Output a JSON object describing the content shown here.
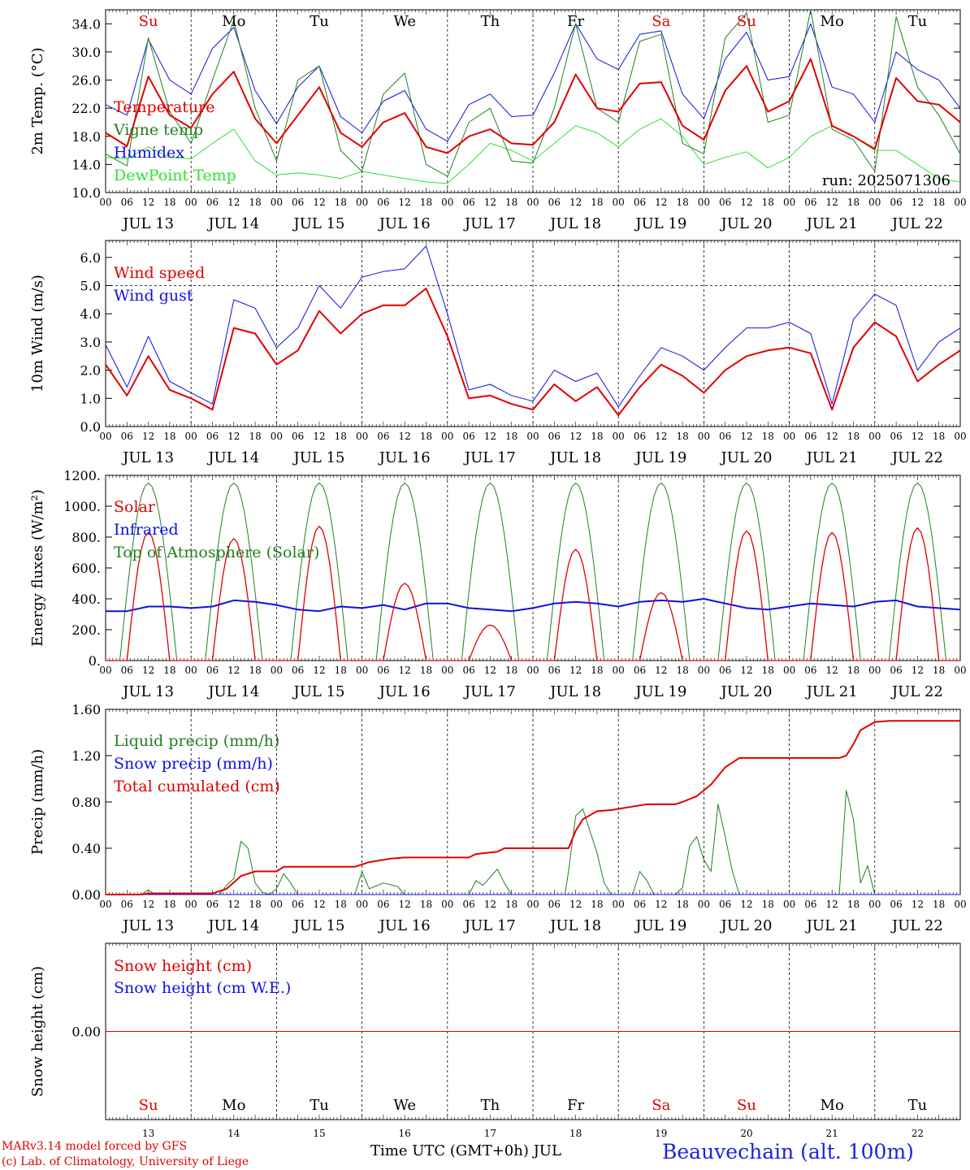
{
  "days": [
    "13",
    "14",
    "15",
    "16",
    "17",
    "18",
    "19",
    "20",
    "21",
    "22"
  ],
  "day_names": [
    "Su",
    "Mo",
    "Tu",
    "We",
    "Th",
    "Fr",
    "Sa",
    "Su",
    "Mo",
    "Tu"
  ],
  "weekend_flags": [
    true,
    false,
    false,
    false,
    false,
    false,
    true,
    true,
    false,
    false
  ],
  "date_labels": [
    "JUL 13",
    "JUL 14",
    "JUL 15",
    "JUL 16",
    "JUL 17",
    "JUL 18",
    "JUL 19",
    "JUL 20",
    "JUL 21",
    "JUL 22"
  ],
  "hour_labels": [
    "00",
    "06",
    "12",
    "18"
  ],
  "final_hour_label": "00",
  "colors": {
    "red": "#e00000",
    "dark_green": "#208020",
    "blue": "#1010e0",
    "light_green": "#30e030",
    "black": "#000000"
  },
  "footer": {
    "model": "MARv3.14 model forced by GFS",
    "credit": "(c) Lab. of Climatology, University of Liege",
    "axis_title": "Time UTC (GMT+0h) JUL",
    "station": "Beauvechain (alt. 100m)"
  },
  "chart_data": [
    {
      "type": "line",
      "ylabel": "2m Temp. (°C)",
      "ylim": [
        10,
        36
      ],
      "yticks": [
        "10.0",
        "14.0",
        "18.0",
        "22.0",
        "26.0",
        "30.0",
        "34.0"
      ],
      "ytick_values": [
        10,
        14,
        18,
        22,
        26,
        30,
        34
      ],
      "annotation": "run: 2025071306",
      "legend": [
        "Temperature",
        "Vigne temp",
        "Humidex",
        "DewPoint Temp"
      ],
      "x_hours": [
        0,
        6,
        12,
        18,
        24,
        30,
        36,
        42,
        48,
        54,
        60,
        66,
        72,
        78,
        84,
        90,
        96,
        102,
        108,
        114,
        120,
        126,
        132,
        138,
        144,
        150,
        156,
        162,
        168,
        174,
        180,
        186,
        192,
        198,
        204,
        210,
        216,
        222,
        228,
        234,
        240
      ],
      "series": [
        {
          "name": "Temperature",
          "color": "red",
          "width": 2,
          "values": [
            18.5,
            16.6,
            26.5,
            21.0,
            19.2,
            24.0,
            27.2,
            20.5,
            17.0,
            21.0,
            25.0,
            18.5,
            16.5,
            20.0,
            21.3,
            16.5,
            15.6,
            18.0,
            19.0,
            17.0,
            16.8,
            20.0,
            26.8,
            22.0,
            21.5,
            25.5,
            25.7,
            19.5,
            17.5,
            24.5,
            28.0,
            21.5,
            23.0,
            29.0,
            19.5,
            18.0,
            16.2,
            26.3,
            23.0,
            22.5,
            20.0
          ]
        },
        {
          "name": "Vigne temp",
          "color": "dark_green",
          "width": 1,
          "values": [
            15.5,
            13.8,
            32.0,
            21.5,
            17.0,
            26.0,
            34.5,
            22.0,
            14.5,
            26.0,
            28.0,
            16.0,
            13.0,
            24.0,
            27.0,
            14.0,
            12.3,
            20.0,
            22.0,
            14.5,
            14.2,
            22.0,
            34.0,
            22.0,
            20.0,
            31.5,
            32.5,
            17.0,
            15.5,
            32.0,
            35.5,
            20.0,
            21.0,
            36.0,
            19.0,
            17.5,
            13.0,
            35.0,
            25.0,
            21.0,
            15.5
          ]
        },
        {
          "name": "Humidex",
          "color": "blue",
          "width": 1,
          "values": [
            22.5,
            21.0,
            31.8,
            26.0,
            24.0,
            30.5,
            33.5,
            24.5,
            19.8,
            25.0,
            28.0,
            20.8,
            18.5,
            23.0,
            24.5,
            19.0,
            17.3,
            22.5,
            24.0,
            20.8,
            21.0,
            27.0,
            34.0,
            29.0,
            27.5,
            32.5,
            33.0,
            24.0,
            20.5,
            29.0,
            32.8,
            26.0,
            26.5,
            34.0,
            25.0,
            24.0,
            20.0,
            30.0,
            27.5,
            26.0,
            22.0
          ]
        },
        {
          "name": "DewPoint Temp",
          "color": "light_green",
          "width": 1,
          "values": [
            15.0,
            14.8,
            16.5,
            15.0,
            14.8,
            17.0,
            19.0,
            14.5,
            12.5,
            12.8,
            12.5,
            12.0,
            13.0,
            12.5,
            12.0,
            11.5,
            11.3,
            14.0,
            17.0,
            16.0,
            14.5,
            17.0,
            19.5,
            18.5,
            16.5,
            19.0,
            20.5,
            18.0,
            14.0,
            15.0,
            15.8,
            13.5,
            15.0,
            18.0,
            19.5,
            18.0,
            16.0,
            16.0,
            14.0,
            12.0,
            11.5
          ]
        }
      ],
      "dashed_lines": []
    },
    {
      "type": "line",
      "ylabel": "10m Wind (m/s)",
      "ylim": [
        0,
        6.6
      ],
      "yticks": [
        "0.0",
        "1.0",
        "2.0",
        "3.0",
        "4.0",
        "5.0",
        "6.0"
      ],
      "ytick_values": [
        0,
        1,
        2,
        3,
        4,
        5,
        6
      ],
      "legend": [
        "Wind speed",
        "Wind gust"
      ],
      "x_hours": [
        0,
        6,
        12,
        18,
        24,
        30,
        36,
        42,
        48,
        54,
        60,
        66,
        72,
        78,
        84,
        90,
        96,
        102,
        108,
        114,
        120,
        126,
        132,
        138,
        144,
        150,
        156,
        162,
        168,
        174,
        180,
        186,
        192,
        198,
        204,
        210,
        216,
        222,
        228,
        234,
        240
      ],
      "series": [
        {
          "name": "Wind speed",
          "color": "red",
          "width": 2,
          "values": [
            2.2,
            1.1,
            2.5,
            1.3,
            1.0,
            0.6,
            3.5,
            3.3,
            2.2,
            2.7,
            4.1,
            3.3,
            4.0,
            4.3,
            4.3,
            4.9,
            3.2,
            1.0,
            1.1,
            0.8,
            0.6,
            1.5,
            0.9,
            1.4,
            0.4,
            1.4,
            2.2,
            1.8,
            1.2,
            2.0,
            2.5,
            2.7,
            2.8,
            2.6,
            0.6,
            2.8,
            3.7,
            3.2,
            1.6,
            2.2,
            2.7
          ]
        },
        {
          "name": "Wind gust",
          "color": "blue",
          "width": 1,
          "values": [
            2.9,
            1.4,
            3.2,
            1.6,
            1.2,
            0.8,
            4.5,
            4.2,
            2.8,
            3.5,
            5.0,
            4.2,
            5.3,
            5.5,
            5.6,
            6.4,
            4.0,
            1.3,
            1.5,
            1.1,
            0.9,
            2.0,
            1.6,
            1.9,
            0.7,
            1.8,
            2.8,
            2.5,
            2.0,
            2.8,
            3.5,
            3.5,
            3.7,
            3.3,
            0.8,
            3.8,
            4.7,
            4.3,
            2.0,
            3.0,
            3.5
          ]
        }
      ],
      "dashed_lines": [
        5.0
      ]
    },
    {
      "type": "line",
      "ylabel": "Energy fluxes (W/m²)",
      "ylim": [
        0,
        1200
      ],
      "yticks": [
        "0.",
        "200.",
        "400.",
        "600.",
        "800.",
        "1000.",
        "1200."
      ],
      "ytick_values": [
        0,
        200,
        400,
        600,
        800,
        1000,
        1200
      ],
      "legend": [
        "Solar",
        "Infrared",
        "Top of Atmosphere (Solar)"
      ],
      "solar_peaks": [
        830,
        790,
        870,
        500,
        230,
        720,
        440,
        840,
        830,
        860
      ],
      "infrared_values": [
        320,
        320,
        350,
        350,
        340,
        350,
        390,
        380,
        360,
        330,
        320,
        350,
        340,
        360,
        330,
        370,
        370,
        340,
        330,
        320,
        340,
        370,
        380,
        370,
        350,
        380,
        390,
        380,
        400,
        370,
        340,
        330,
        350,
        370,
        360,
        350,
        380,
        390,
        350,
        340,
        330
      ],
      "toa_peak": 1150,
      "series": [
        {
          "name": "Solar",
          "color": "red",
          "width": 1
        },
        {
          "name": "Infrared",
          "color": "blue",
          "width": 2
        },
        {
          "name": "Top of Atmosphere (Solar)",
          "color": "dark_green",
          "width": 1
        }
      ],
      "dashed_lines": []
    },
    {
      "type": "line",
      "ylabel": "Precip (mm/h)",
      "ylim": [
        0,
        1.6
      ],
      "yticks": [
        "0.00",
        "0.40",
        "0.80",
        "1.20",
        "1.60"
      ],
      "ytick_values": [
        0,
        0.4,
        0.8,
        1.2,
        1.6
      ],
      "legend": [
        "Liquid precip (mm/h)",
        "Snow precip (mm/h)",
        "Total cumulated (cm)"
      ],
      "liquid_precip_points": [
        [
          0,
          0
        ],
        [
          10,
          0
        ],
        [
          12,
          0.04
        ],
        [
          14,
          0
        ],
        [
          32,
          0
        ],
        [
          34,
          0.08
        ],
        [
          36,
          0.14
        ],
        [
          38,
          0.46
        ],
        [
          40,
          0.4
        ],
        [
          42,
          0.1
        ],
        [
          44,
          0.02
        ],
        [
          46,
          0
        ],
        [
          48,
          0.05
        ],
        [
          50,
          0.18
        ],
        [
          52,
          0.1
        ],
        [
          54,
          0
        ],
        [
          70,
          0
        ],
        [
          72,
          0.2
        ],
        [
          74,
          0.05
        ],
        [
          78,
          0.1
        ],
        [
          82,
          0.07
        ],
        [
          84,
          0
        ],
        [
          102,
          0
        ],
        [
          104,
          0.12
        ],
        [
          106,
          0.08
        ],
        [
          110,
          0.22
        ],
        [
          112,
          0.1
        ],
        [
          114,
          0
        ],
        [
          129,
          0
        ],
        [
          130,
          0.2
        ],
        [
          132,
          0.68
        ],
        [
          134,
          0.74
        ],
        [
          136,
          0.55
        ],
        [
          138,
          0.36
        ],
        [
          140,
          0.1
        ],
        [
          142,
          0
        ],
        [
          148,
          0
        ],
        [
          150,
          0.2
        ],
        [
          152,
          0.12
        ],
        [
          154,
          0
        ],
        [
          160,
          0
        ],
        [
          162,
          0.06
        ],
        [
          164,
          0.42
        ],
        [
          166,
          0.5
        ],
        [
          168,
          0.3
        ],
        [
          170,
          0.2
        ],
        [
          172,
          0.78
        ],
        [
          174,
          0.5
        ],
        [
          176,
          0.2
        ],
        [
          178,
          0
        ],
        [
          206,
          0
        ],
        [
          208,
          0.9
        ],
        [
          210,
          0.65
        ],
        [
          212,
          0.1
        ],
        [
          214,
          0.25
        ],
        [
          216,
          0
        ],
        [
          240,
          0
        ]
      ],
      "cumulated_points": [
        [
          0,
          0
        ],
        [
          10,
          0
        ],
        [
          12,
          0.01
        ],
        [
          30,
          0.01
        ],
        [
          34,
          0.05
        ],
        [
          38,
          0.16
        ],
        [
          42,
          0.2
        ],
        [
          48,
          0.2
        ],
        [
          50,
          0.24
        ],
        [
          70,
          0.24
        ],
        [
          74,
          0.28
        ],
        [
          80,
          0.31
        ],
        [
          84,
          0.32
        ],
        [
          102,
          0.32
        ],
        [
          104,
          0.35
        ],
        [
          110,
          0.37
        ],
        [
          112,
          0.4
        ],
        [
          130,
          0.4
        ],
        [
          132,
          0.55
        ],
        [
          134,
          0.65
        ],
        [
          138,
          0.72
        ],
        [
          142,
          0.73
        ],
        [
          148,
          0.76
        ],
        [
          152,
          0.78
        ],
        [
          160,
          0.78
        ],
        [
          162,
          0.8
        ],
        [
          166,
          0.85
        ],
        [
          170,
          0.95
        ],
        [
          174,
          1.1
        ],
        [
          178,
          1.18
        ],
        [
          206,
          1.18
        ],
        [
          208,
          1.2
        ],
        [
          210,
          1.3
        ],
        [
          212,
          1.42
        ],
        [
          216,
          1.49
        ],
        [
          220,
          1.5
        ],
        [
          240,
          1.5
        ]
      ],
      "series": [
        {
          "name": "Liquid precip (mm/h)",
          "color": "dark_green",
          "width": 1
        },
        {
          "name": "Snow precip (mm/h)",
          "color": "blue",
          "width": 1
        },
        {
          "name": "Total cumulated (cm)",
          "color": "red",
          "width": 2
        }
      ],
      "dashed_lines": []
    },
    {
      "type": "line",
      "ylabel": "Snow height (cm)",
      "ylim": [
        -1,
        1
      ],
      "yticks": [
        "0.00"
      ],
      "ytick_values": [
        0
      ],
      "legend": [
        "Snow height (cm)",
        "Snow height (cm W.E.)"
      ],
      "x_hours": [
        0,
        240
      ],
      "series": [
        {
          "name": "Snow height (cm)",
          "color": "red",
          "width": 1,
          "values": [
            0,
            0
          ]
        }
      ],
      "dashed_lines": []
    }
  ]
}
